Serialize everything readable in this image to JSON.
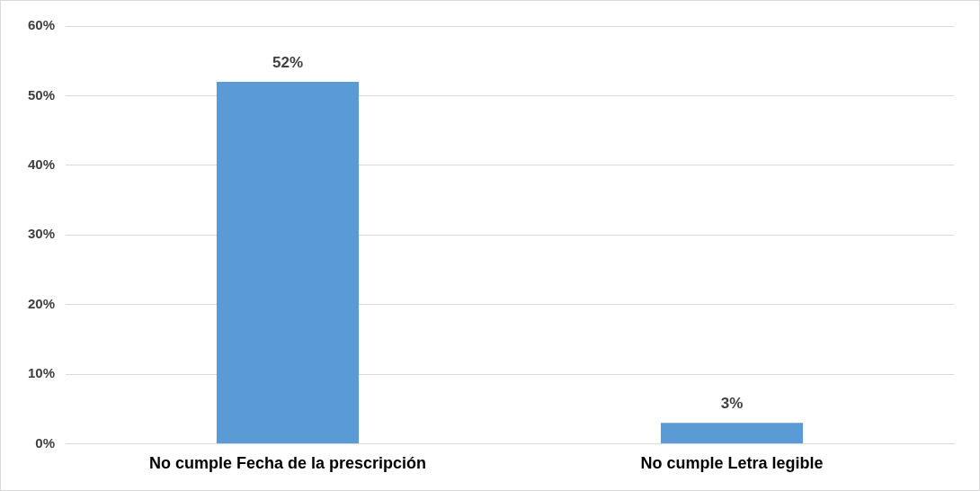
{
  "chart_data": {
    "type": "bar",
    "categories": [
      "No cumple Fecha de la prescripción",
      "No cumple Letra legible"
    ],
    "values": [
      52,
      3
    ],
    "color": "#5b9bd5",
    "value_labels": [
      "52%",
      "3%"
    ],
    "ylim": [
      0,
      60
    ],
    "yticks": [
      {
        "value": 0,
        "label": "0%"
      },
      {
        "value": 10,
        "label": "10%"
      },
      {
        "value": 20,
        "label": "20%"
      },
      {
        "value": 30,
        "label": "30%"
      },
      {
        "value": 40,
        "label": "40%"
      },
      {
        "value": 50,
        "label": "50%"
      },
      {
        "value": 60,
        "label": "60%"
      }
    ],
    "grid": "y",
    "legend": false
  }
}
